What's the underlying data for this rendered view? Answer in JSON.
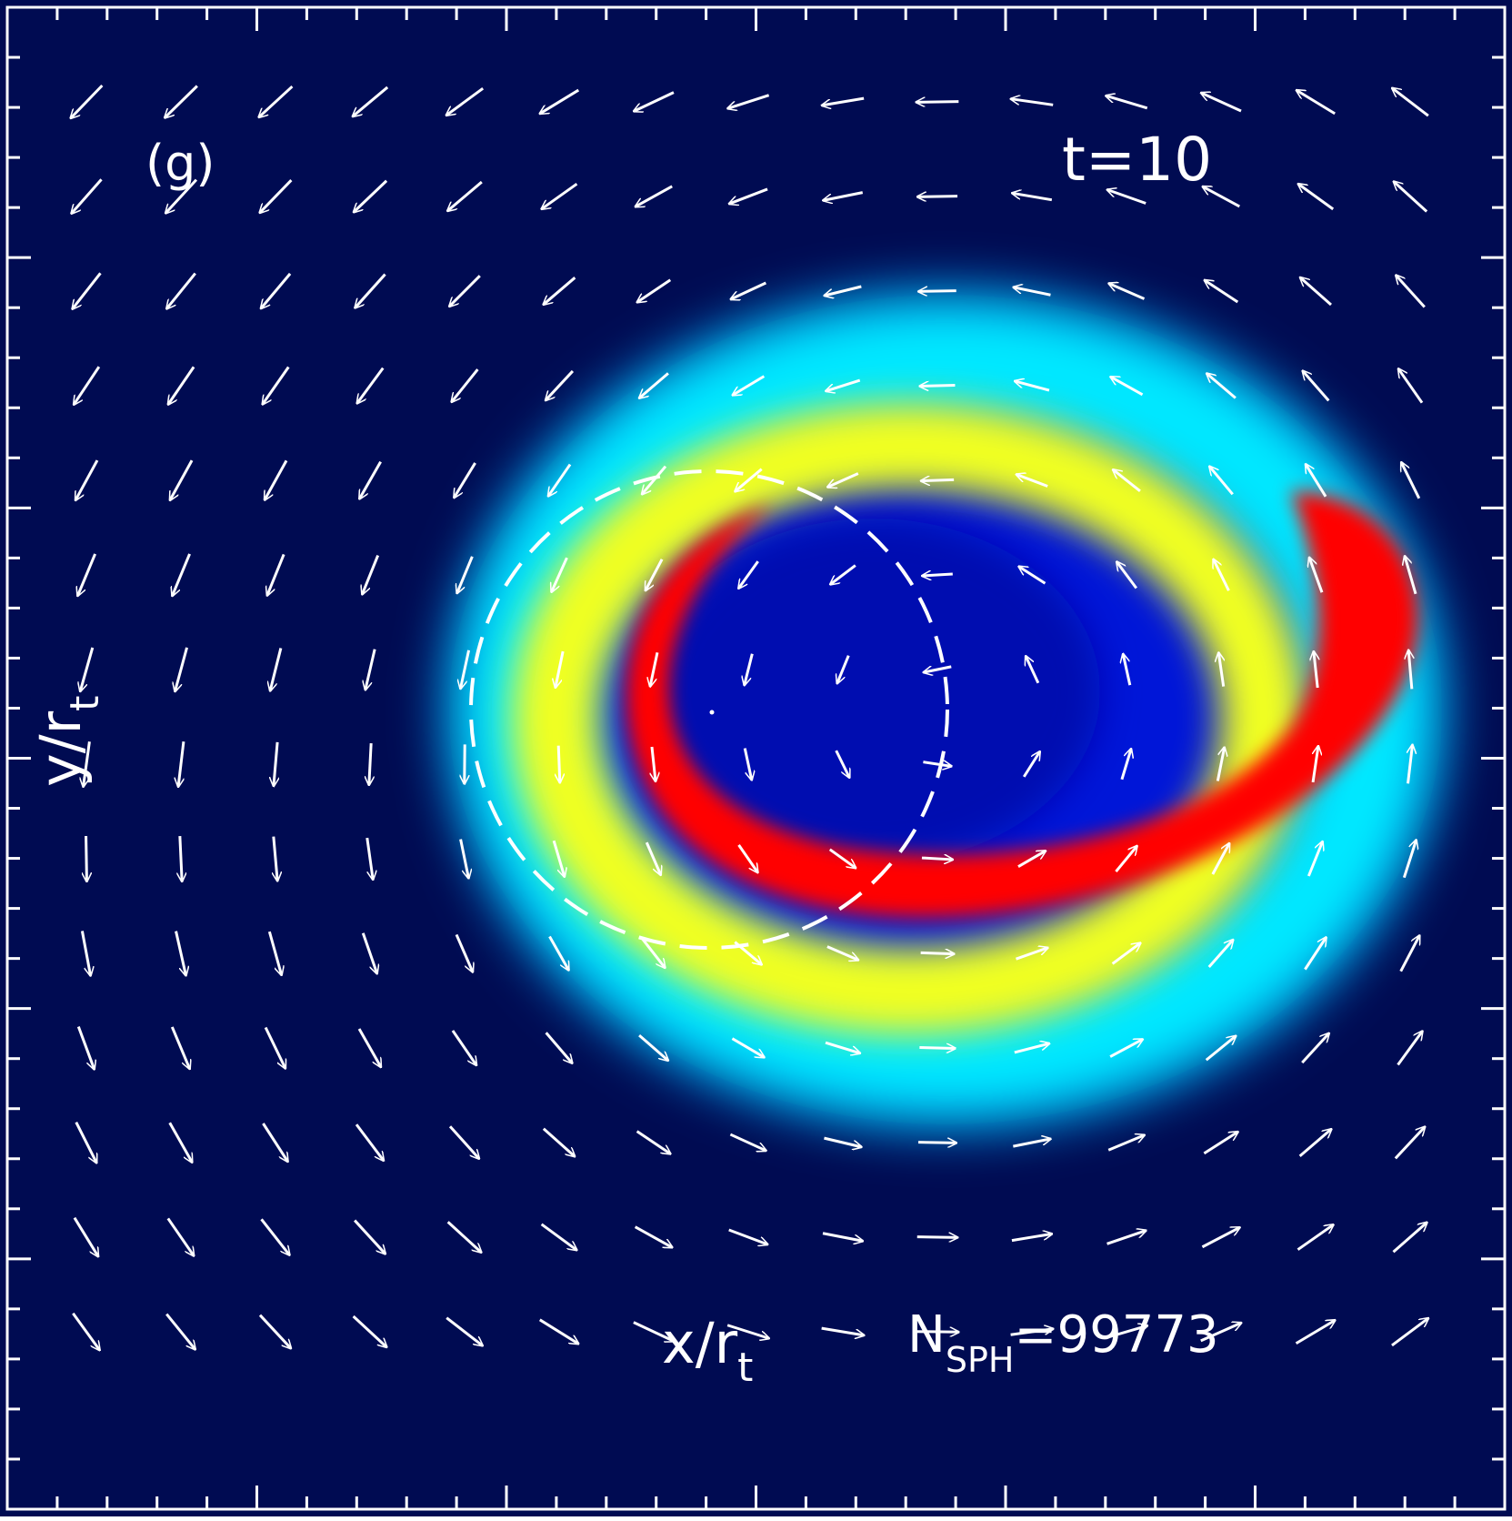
{
  "panel_label": "(g)",
  "time_label": "t=10",
  "x_axis_label": {
    "main": "x/r",
    "sub": "t"
  },
  "y_axis_label": {
    "main": "y/r",
    "sub": "t"
  },
  "particle_count": {
    "prefix": "N",
    "sub": "SPH",
    "value": "=99773"
  },
  "colors": {
    "background": "#000b52",
    "frame": "#ffffff",
    "density_low": "#0000c8",
    "density_mid": "#00ffff",
    "density_high": "#ffff00",
    "density_peak": "#ff0000",
    "arrows": "#ffffff"
  },
  "legend": "none",
  "grid": false
}
